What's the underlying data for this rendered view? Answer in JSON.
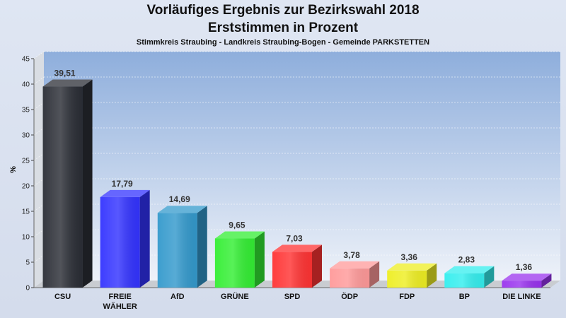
{
  "title_line1": "Vorläufiges Ergebnis zur Bezirkswahl 2018",
  "title_line2": "Erststimmen in Prozent",
  "subtitle": "Stimmkreis Straubing - Landkreis Straubing-Bogen - Gemeinde PARKSTETTEN",
  "chart_data": {
    "type": "bar",
    "title": "Vorläufiges Ergebnis zur Bezirkswahl 2018",
    "subtitle": "Erststimmen in Prozent",
    "ylabel": "%",
    "ylim": [
      0,
      45
    ],
    "yticks": [
      0,
      5,
      10,
      15,
      20,
      25,
      30,
      35,
      40,
      45
    ],
    "grid": true,
    "categories": [
      "CSU",
      [
        "FREIE",
        "WÄHLER"
      ],
      "AfD",
      "GRÜNE",
      "SPD",
      "ÖDP",
      "FDP",
      "BP",
      "DIE LINKE"
    ],
    "values": [
      39.51,
      17.79,
      14.69,
      9.65,
      7.03,
      3.78,
      3.36,
      2.83,
      1.36
    ],
    "value_labels": [
      "39,51",
      "17,79",
      "14,69",
      "9,65",
      "7,03",
      "3,78",
      "3,36",
      "2,83",
      "1,36"
    ],
    "colors": [
      "#2b2e36",
      "#3333ff",
      "#3399cc",
      "#33ee33",
      "#ff3333",
      "#ff9999",
      "#eeee22",
      "#33eeee",
      "#9933ee"
    ]
  }
}
